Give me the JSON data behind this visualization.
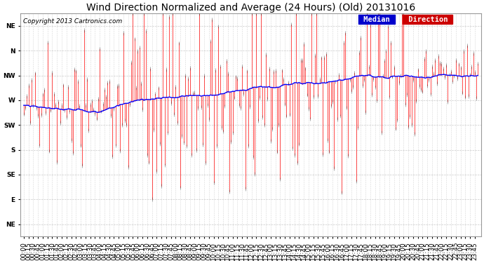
{
  "title": "Wind Direction Normalized and Average (24 Hours) (Old) 20131016",
  "copyright": "Copyright 2013 Cartronics.com",
  "legend_median": "Median",
  "legend_direction": "Direction",
  "legend_median_bg": "#0000cc",
  "legend_direction_bg": "#cc0000",
  "bg_color": "#ffffff",
  "plot_bg_color": "#ffffff",
  "grid_color": "#bbbbbb",
  "ytick_labels": [
    "NE",
    "N",
    "NW",
    "W",
    "SW",
    "S",
    "SE",
    "E",
    "NE"
  ],
  "ytick_values": [
    9,
    8,
    7,
    6,
    5,
    4,
    3,
    2,
    1
  ],
  "ylim": [
    0.5,
    9.5
  ],
  "num_points": 288,
  "median_color": "#0000ff",
  "direction_color": "#ff0000",
  "vline_color": "#333333",
  "title_fontsize": 10,
  "tick_fontsize": 6.5,
  "copyright_fontsize": 6.5,
  "figwidth": 6.9,
  "figheight": 3.75,
  "dpi": 100
}
